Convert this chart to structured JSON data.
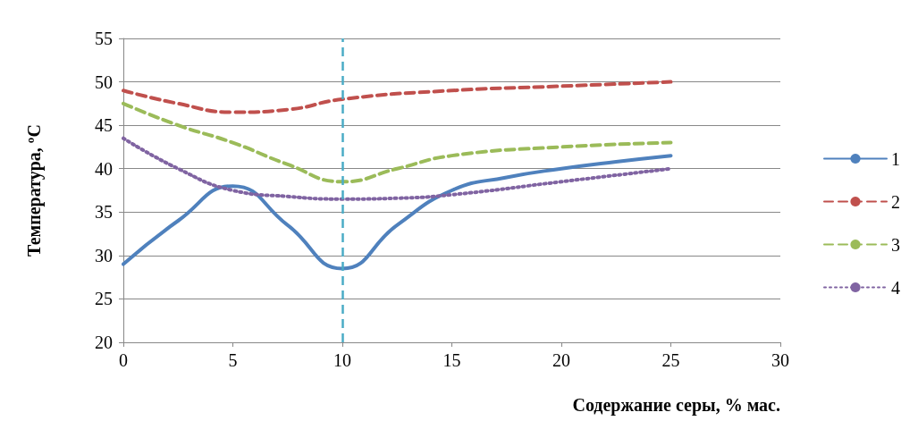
{
  "chart_data": {
    "type": "line",
    "xlabel": "Содержание серы, % мас.",
    "ylabel": "Температура, ºС",
    "xlim": [
      0,
      30
    ],
    "xticks": [
      0,
      5,
      10,
      15,
      20,
      25,
      30
    ],
    "ylim": [
      20,
      55
    ],
    "yticks": [
      20,
      25,
      30,
      35,
      40,
      45,
      50,
      55
    ],
    "grid": "y",
    "legend": "right",
    "marker": "none",
    "ref_lines": [
      {
        "axis": "x",
        "value": 10,
        "color": "#4bacc6",
        "line_style": "dashed"
      }
    ],
    "series": [
      {
        "name": "1",
        "color": "#4f81bd",
        "line_style": "solid",
        "x": [
          0,
          2.5,
          5,
          7.5,
          10,
          12.5,
          15,
          17.5,
          20,
          22.5,
          25
        ],
        "values": [
          29,
          34,
          38,
          33.5,
          28.5,
          33.5,
          37.5,
          39,
          40,
          40.8,
          41.5
        ]
      },
      {
        "name": "2",
        "color": "#c0504d",
        "line_style": "dashed",
        "x": [
          0,
          2.5,
          5,
          7.5,
          10,
          15,
          20,
          25
        ],
        "values": [
          49,
          47.5,
          46.5,
          46.8,
          48,
          49,
          49.5,
          50
        ]
      },
      {
        "name": "3",
        "color": "#9bbb59",
        "line_style": "dashed",
        "x": [
          0,
          2.5,
          5,
          7.5,
          10,
          12.5,
          15,
          20,
          25
        ],
        "values": [
          47.5,
          45,
          43,
          40.5,
          38.5,
          40,
          41.5,
          42.5,
          43
        ]
      },
      {
        "name": "4",
        "color": "#8064a2",
        "line_style": "dotted",
        "x": [
          0,
          2.5,
          5,
          7.5,
          10,
          12.5,
          15,
          20,
          25
        ],
        "values": [
          43.5,
          40,
          37.5,
          36.8,
          36.5,
          36.6,
          37,
          38.5,
          40
        ]
      }
    ]
  }
}
